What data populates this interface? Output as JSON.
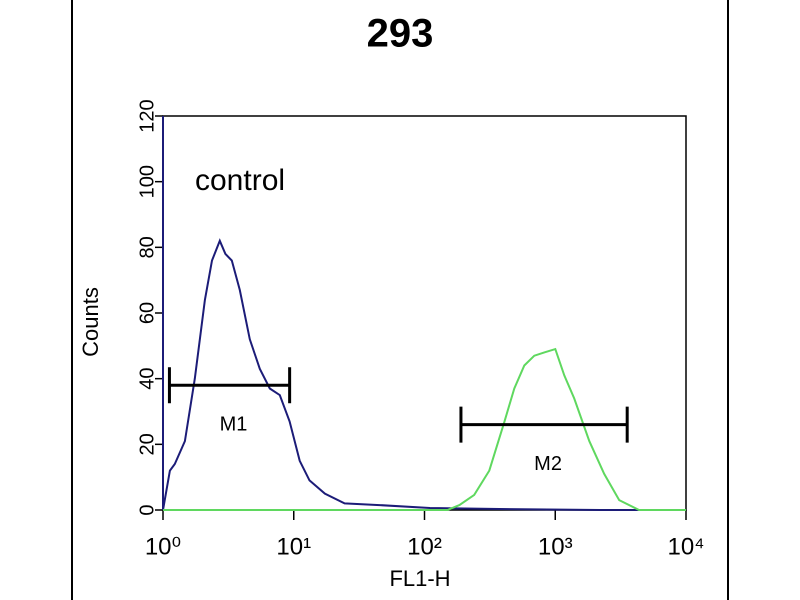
{
  "chart_data": {
    "type": "line",
    "title": "293",
    "xlabel": "FL1-H",
    "ylabel": "Counts",
    "annotation": "control",
    "xscale": "log",
    "xlim": [
      1,
      10000
    ],
    "ylim": [
      0,
      120
    ],
    "xticks": [
      {
        "value": 1,
        "label": "10⁰"
      },
      {
        "value": 10,
        "label": "10¹"
      },
      {
        "value": 100,
        "label": "10²"
      },
      {
        "value": 1000,
        "label": "10³"
      },
      {
        "value": 10000,
        "label": "10⁴"
      }
    ],
    "yticks": [
      0,
      20,
      40,
      60,
      80,
      100,
      120
    ],
    "series": [
      {
        "color": "#1c1c78",
        "x": [
          1,
          1,
          1.13,
          1.23,
          1.47,
          1.75,
          2.09,
          2.37,
          2.72,
          3.0,
          3.36,
          3.87,
          4.61,
          5.5,
          6.56,
          7.82,
          9.3,
          11.1,
          13.2,
          17.3,
          24.5,
          45.3,
          110,
          373,
          2190,
          10000
        ],
        "values": [
          120,
          0,
          12,
          14,
          21,
          40,
          64,
          76,
          82,
          78,
          76,
          67,
          52,
          43,
          37,
          35,
          27,
          15,
          9,
          5,
          2,
          1.5,
          0.6,
          0.3,
          0,
          0
        ]
      },
      {
        "color": "#5fd85f",
        "x": [
          1,
          150,
          185,
          240,
          313,
          409,
          486,
          580,
          692,
          824,
          1000,
          1172,
          1397,
          1820,
          2368,
          3083,
          4370,
          10000
        ],
        "values": [
          0,
          0,
          1.5,
          4.6,
          12,
          27,
          37,
          44,
          47,
          48,
          49,
          41,
          34,
          21,
          11,
          3,
          0,
          0
        ]
      }
    ],
    "markers": [
      {
        "label": "M1",
        "range": [
          1.12,
          9.3
        ],
        "y": 38
      },
      {
        "label": "M2",
        "range": [
          190,
          3550
        ],
        "y": 26
      }
    ]
  }
}
